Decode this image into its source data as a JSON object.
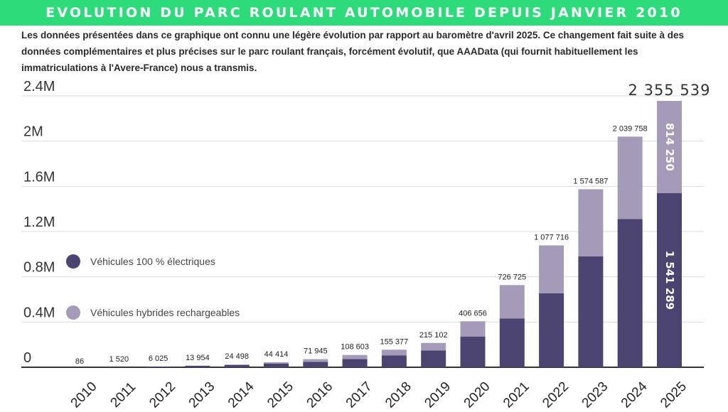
{
  "header": {
    "title": "EVOLUTION DU PARC ROULANT AUTOMOBILE DEPUIS JANVIER 2010"
  },
  "intro": {
    "text": "Les données présentées dans ce graphique ont connu une légère évolution par rapport au baromètre d'avril 2025. Ce changement fait suite à des données complémentaires et plus précises sur le parc roulant français, forcément évolutif, que AAAData (qui fournit habituellement les immatriculations à l'Avere-France) nous a transmis."
  },
  "colors": {
    "banner": "#2ddb7b",
    "electric": "#4b4370",
    "hybrid": "#a39bb8",
    "grid": "#d9d9d9"
  },
  "chart_data": {
    "type": "bar",
    "stacked": true,
    "title": "EVOLUTION DU PARC ROULANT AUTOMOBILE DEPUIS JANVIER 2010",
    "categories": [
      "2010",
      "2011",
      "2012",
      "2013",
      "2014",
      "2015",
      "2016",
      "2017",
      "2018",
      "2019",
      "2020",
      "2021",
      "2022",
      "2023",
      "2024",
      "2025"
    ],
    "series": [
      {
        "name": "Véhicules 100 % électriques",
        "values": [
          86,
          1520,
          6000,
          13000,
          20000,
          33000,
          48000,
          72000,
          104000,
          148000,
          272000,
          432000,
          655000,
          980000,
          1310000,
          1541289
        ]
      },
      {
        "name": "Véhicules hybrides rechargeables",
        "values": [
          0,
          0,
          25,
          954,
          4498,
          11414,
          23945,
          36603,
          51377,
          67102,
          134656,
          294725,
          422716,
          594587,
          729758,
          814250
        ]
      }
    ],
    "totals": [
      "86",
      "1 520",
      "6 025",
      "13 954",
      "24 498",
      "44 414",
      "71 945",
      "108 603",
      "155 377",
      "215 102",
      "406 656",
      "726 725",
      "1 077 716",
      "1 574 587",
      "2 039 758",
      "2 355 539"
    ],
    "inner_labels": {
      "category": "2025",
      "electric": "1 541 289",
      "hybrid": "814 250"
    },
    "ylim": [
      0,
      2400000
    ],
    "yticks": [
      0,
      400000,
      800000,
      1200000,
      1600000,
      2000000,
      2400000
    ],
    "ytick_labels": [
      "0",
      "0.4M",
      "0.8M",
      "1.2M",
      "1.6M",
      "2M",
      "2.4M"
    ],
    "legend_position": "left",
    "grid": true
  }
}
